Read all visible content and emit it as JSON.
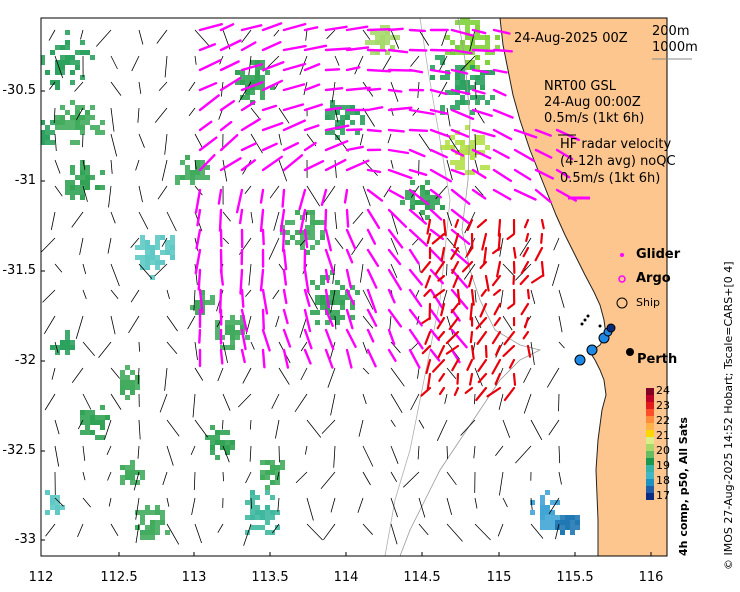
{
  "header": {
    "date": "24-Aug-2025 00Z",
    "scale_200": "200m",
    "scale_1000": "1000m"
  },
  "gsl": {
    "line1": "NRT00 GSL",
    "line2": "24-Aug 00:00Z",
    "line3": "0.5m/s (1kt 6h)"
  },
  "radar": {
    "line1": "HF radar velocity",
    "line2": "(4-12h avg) noQC",
    "line3": "0.5m/s (1kt 6h)"
  },
  "legend": {
    "glider": "Glider",
    "argo": "Argo",
    "ship": "Ship"
  },
  "city": "Perth",
  "colorbar": {
    "title": "4h comp, p50, All Sats",
    "ticks": [
      "24",
      "23",
      "22",
      "21",
      "20",
      "19",
      "18",
      "17"
    ]
  },
  "credit": "© IMOS 27-Aug-2025 14:52 Hobart; Tscale=CARS+[0 4]",
  "axes": {
    "lat_ticks": [
      "-30.5",
      "-31",
      "-31.5",
      "-32",
      "-32.5",
      "-33"
    ],
    "lon_ticks": [
      "112",
      "112.5",
      "113",
      "113.5",
      "114",
      "114.5",
      "115",
      "115.5",
      "116"
    ]
  },
  "colors": {
    "land": "#fcc68e",
    "gsl_arrow": "#ff00ff",
    "radar_arrow": "#e8000b"
  }
}
